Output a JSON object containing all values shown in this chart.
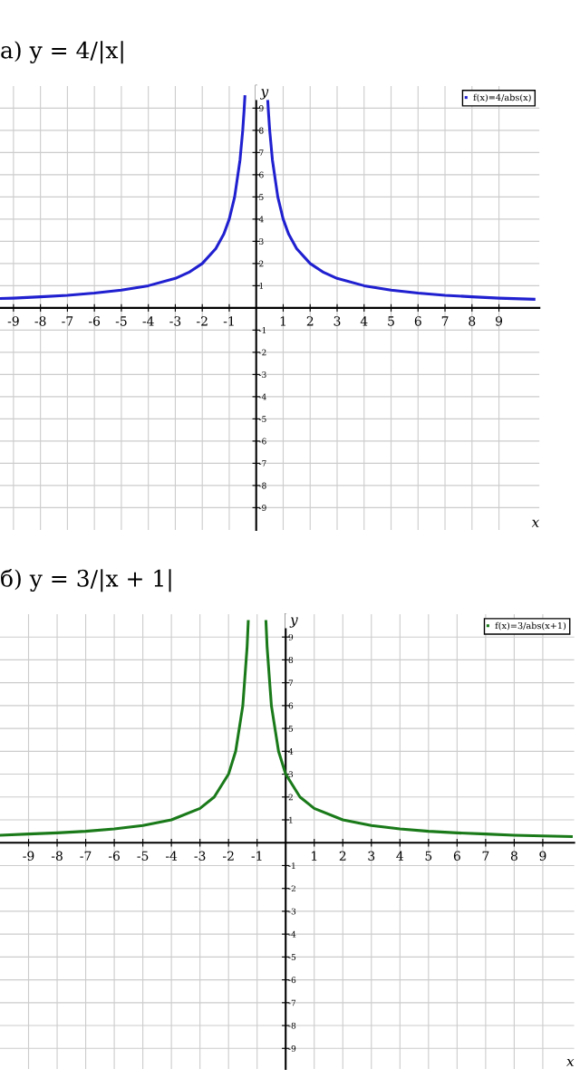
{
  "chart_data": [
    {
      "type": "line",
      "title": "а) y = 4/|x|",
      "xlabel": "x",
      "ylabel": "y",
      "xlim": [
        -9.5,
        10.5
      ],
      "ylim": [
        -10,
        10
      ],
      "xticks": [
        -9,
        -8,
        -7,
        -6,
        -5,
        -4,
        -3,
        -2,
        -1,
        1,
        2,
        3,
        4,
        5,
        6,
        7,
        8,
        9
      ],
      "yticks": [
        -9,
        -8,
        -7,
        -6,
        -5,
        -4,
        -3,
        -2,
        -1,
        1,
        2,
        3,
        4,
        5,
        6,
        7,
        8,
        9
      ],
      "grid": true,
      "legend": "top right",
      "series": [
        {
          "name": "f(x)=4/abs(x)",
          "color": "#2020d0",
          "x": [
            -9.5,
            -9,
            -8,
            -7,
            -6,
            -5,
            -4,
            -3,
            -2.5,
            -2,
            -1.5,
            -1.2,
            -1,
            -0.8,
            -0.6,
            -0.5,
            -0.45,
            -0.42,
            0,
            0.42,
            0.45,
            0.5,
            0.6,
            0.8,
            1,
            1.2,
            1.5,
            2,
            2.5,
            3,
            4,
            5,
            6,
            7,
            8,
            9,
            10.3
          ],
          "values": [
            0.42,
            0.44,
            0.5,
            0.57,
            0.67,
            0.8,
            1,
            1.33,
            1.6,
            2,
            2.67,
            3.33,
            4,
            5,
            6.67,
            8,
            8.89,
            9.52,
            null,
            9.52,
            8.89,
            8,
            6.67,
            5,
            4,
            3.33,
            2.67,
            2,
            1.6,
            1.33,
            1,
            0.8,
            0.67,
            0.57,
            0.5,
            0.44,
            0.39
          ]
        }
      ]
    },
    {
      "type": "line",
      "title": "б) y = 3/|x + 1|",
      "xlabel": "x",
      "ylabel": "y",
      "xlim": [
        -10,
        10.1
      ],
      "ylim": [
        -9.9,
        10
      ],
      "xticks": [
        -9,
        -8,
        -7,
        -6,
        -5,
        -4,
        -3,
        -2,
        -1,
        1,
        2,
        3,
        4,
        5,
        6,
        7,
        8,
        9
      ],
      "yticks": [
        -9,
        -8,
        -7,
        -6,
        -5,
        -4,
        -3,
        -2,
        -1,
        1,
        2,
        3,
        4,
        5,
        6,
        7,
        8,
        9
      ],
      "grid": true,
      "legend": "top right",
      "series": [
        {
          "name": "f(x)=3/abs(x+1)",
          "color": "#1a7a1a",
          "x": [
            -10,
            -9,
            -8,
            -7,
            -6,
            -5,
            -4,
            -3,
            -2.5,
            -2,
            -1.75,
            -1.5,
            -1.35,
            -1.31,
            -1,
            -0.69,
            -0.65,
            -0.5,
            -0.25,
            0,
            0.5,
            1,
            2,
            3,
            4,
            5,
            6,
            7,
            8,
            9,
            10
          ],
          "values": [
            0.33,
            0.38,
            0.43,
            0.5,
            0.6,
            0.75,
            1,
            1.5,
            2,
            3,
            4,
            6,
            8.57,
            9.68,
            null,
            9.68,
            8.57,
            6,
            4,
            3,
            2,
            1.5,
            1,
            0.75,
            0.6,
            0.5,
            0.43,
            0.38,
            0.33,
            0.3,
            0.27
          ]
        }
      ]
    }
  ]
}
